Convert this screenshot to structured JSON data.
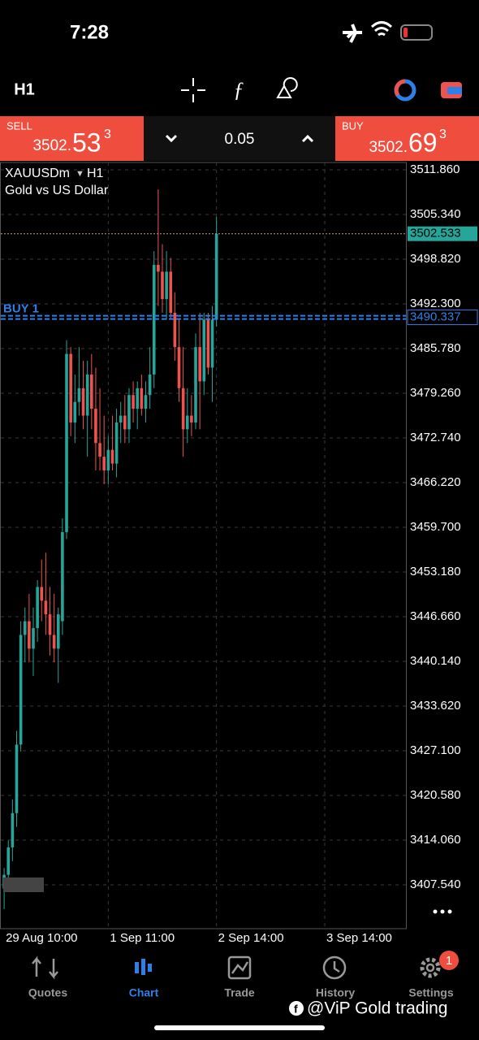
{
  "status": {
    "time": "7:28"
  },
  "toolbar": {
    "timeframe": "H1"
  },
  "trade": {
    "sell": {
      "label": "SELL",
      "price_main": "3502.",
      "price_big": "53",
      "price_sup": "3"
    },
    "volume": "0.05",
    "buy": {
      "label": "BUY",
      "price_main": "3502.",
      "price_big": "69",
      "price_sup": "3"
    }
  },
  "chart_data": {
    "type": "candlestick",
    "symbol": "XAUUSDm",
    "timeframe": "H1",
    "description": "Gold vs US Dollar",
    "up_color": "#26a69a",
    "down_color": "#ef5350",
    "grid": true,
    "ylim": [
      3401.14,
      3512.93
    ],
    "yticks": [
      {
        "value": 3511.86,
        "label": "3511.860"
      },
      {
        "value": 3505.34,
        "label": "3505.340"
      },
      {
        "value": 3498.82,
        "label": "3498.820"
      },
      {
        "value": 3492.3,
        "label": "3492.300"
      },
      {
        "value": 3485.78,
        "label": "3485.780"
      },
      {
        "value": 3479.26,
        "label": "3479.260"
      },
      {
        "value": 3472.74,
        "label": "3472.740"
      },
      {
        "value": 3466.22,
        "label": "3466.220"
      },
      {
        "value": 3459.7,
        "label": "3459.700"
      },
      {
        "value": 3453.18,
        "label": "3453.180"
      },
      {
        "value": 3446.66,
        "label": "3446.660"
      },
      {
        "value": 3440.14,
        "label": "3440.140"
      },
      {
        "value": 3433.62,
        "label": "3433.620"
      },
      {
        "value": 3427.1,
        "label": "3427.100"
      },
      {
        "value": 3420.58,
        "label": "3420.580"
      },
      {
        "value": 3414.06,
        "label": "3414.060"
      },
      {
        "value": 3407.54,
        "label": "3407.540"
      }
    ],
    "xlim": [
      -0.8,
      96.5
    ],
    "xticks": [
      {
        "value": 0,
        "label": "29 Aug 10:00"
      },
      {
        "value": 25,
        "label": "1 Sep 11:00"
      },
      {
        "value": 51,
        "label": "2 Sep 14:00"
      },
      {
        "value": 77,
        "label": "3 Sep 14:00"
      }
    ],
    "open": [
      3407,
      3409,
      3413,
      3418,
      3428,
      3444,
      3446,
      3442,
      3445,
      3451,
      3449,
      3447,
      3444,
      3442,
      3446,
      3459,
      3485,
      3475,
      3478,
      3480,
      3476,
      3482,
      3477,
      3472,
      3470,
      3468,
      3471,
      3469,
      3475,
      3476,
      3474,
      3479,
      3477,
      3480,
      3477,
      3479,
      3482,
      3498,
      3497,
      3493,
      3497,
      3491,
      3486,
      3480,
      3474,
      3476,
      3475,
      3486,
      3481,
      3490,
      3483,
      3490
    ],
    "high": [
      3410,
      3414,
      3420,
      3430,
      3446,
      3448,
      3450,
      3448,
      3452,
      3455,
      3456,
      3451,
      3450,
      3448,
      3461,
      3487,
      3486,
      3482,
      3486,
      3484,
      3484,
      3485,
      3483,
      3480,
      3476,
      3473,
      3476,
      3477,
      3478,
      3479,
      3480,
      3481,
      3481,
      3482,
      3481,
      3486,
      3500,
      3509,
      3501,
      3500,
      3499,
      3494,
      3490,
      3486,
      3480,
      3479,
      3488,
      3491,
      3491,
      3491,
      3492,
      3505
    ],
    "low": [
      3404,
      3407,
      3411,
      3416,
      3427,
      3440,
      3440,
      3438,
      3443,
      3446,
      3444,
      3441,
      3440,
      3437,
      3444,
      3458,
      3473,
      3472,
      3476,
      3474,
      3470,
      3474,
      3468,
      3468,
      3466,
      3466,
      3468,
      3467,
      3472,
      3472,
      3472,
      3475,
      3474,
      3476,
      3475,
      3477,
      3480,
      3492,
      3491,
      3490,
      3490,
      3484,
      3478,
      3470,
      3472,
      3473,
      3474,
      3474,
      3479,
      3482,
      3478,
      3489
    ],
    "close": [
      3409,
      3413,
      3418,
      3428,
      3444,
      3446,
      3442,
      3445,
      3451,
      3449,
      3447,
      3444,
      3442,
      3447,
      3459,
      3485,
      3475,
      3478,
      3480,
      3476,
      3482,
      3477,
      3472,
      3470,
      3468,
      3471,
      3469,
      3475,
      3476,
      3474,
      3479,
      3477,
      3480,
      3477,
      3479,
      3482,
      3498,
      3497,
      3493,
      3497,
      3491,
      3486,
      3480,
      3474,
      3476,
      3475,
      3486,
      3481,
      3490,
      3483,
      3490,
      3502.533
    ],
    "current_price": {
      "value": 3502.533,
      "label": "3502.533"
    },
    "order": {
      "label": "BUY 1",
      "price": {
        "value": 3490.337,
        "label": "3490.337"
      }
    }
  },
  "nav": {
    "items": [
      "Quotes",
      "Chart",
      "Trade",
      "History",
      "Settings"
    ],
    "active": 1,
    "badge": "1"
  },
  "watermark": "@ViP Gold trading"
}
